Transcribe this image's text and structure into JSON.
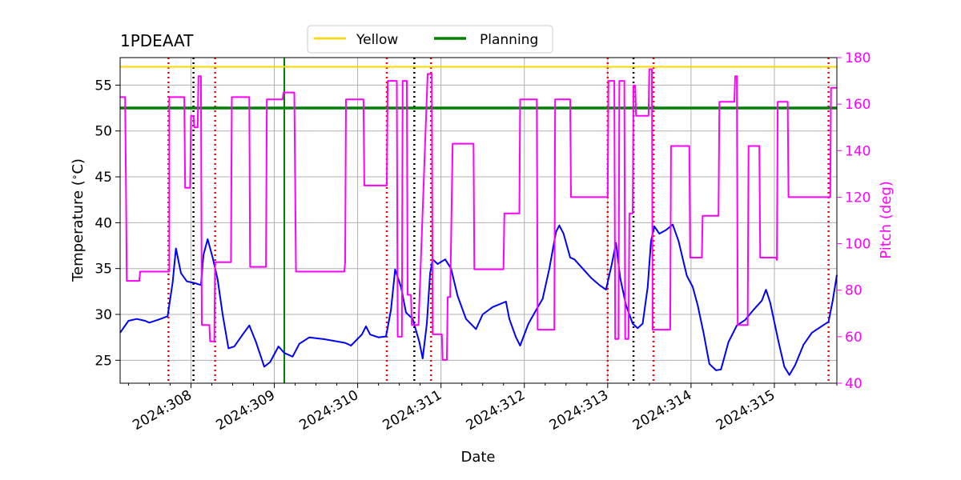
{
  "chart_data": {
    "type": "line",
    "title": "1PDEAAT",
    "xlabel": "Date",
    "ylabel": "Temperature ($^\\circ$C)",
    "y2label": "Pitch (deg)",
    "xlim": [
      307.15,
      315.75
    ],
    "ylim": [
      22.5,
      58.0
    ],
    "y2lim": [
      40,
      180
    ],
    "x_ticks": [
      308,
      309,
      310,
      311,
      312,
      313,
      314,
      315
    ],
    "x_tick_labels": [
      "2024:308",
      "2024:309",
      "2024:310",
      "2024:311",
      "2024:312",
      "2024:313",
      "2024:314",
      "2024:315"
    ],
    "y_ticks": [
      25,
      30,
      35,
      40,
      45,
      50,
      55
    ],
    "y_tick_labels": [
      "25",
      "30",
      "35",
      "40",
      "45",
      "50",
      "55"
    ],
    "y2_ticks": [
      40,
      60,
      80,
      100,
      120,
      140,
      160,
      180
    ],
    "y2_tick_labels": [
      "40",
      "60",
      "80",
      "100",
      "120",
      "140",
      "160",
      "180"
    ],
    "grid": true,
    "legend_position": "top-center",
    "colors": {
      "temperature": "#0000ff",
      "pitch": "#ff00ff",
      "yellow": "#ffd700",
      "planning": "#008000",
      "red_marker": "#ff0000",
      "black_marker": "#000000"
    },
    "legend": [
      {
        "name": "Yellow",
        "color": "#ffd700"
      },
      {
        "name": "Planning",
        "color": "#008000"
      }
    ],
    "hlines": [
      {
        "name": "Yellow",
        "y": 57.0,
        "color": "#ffd700"
      },
      {
        "name": "Planning",
        "y": 52.5,
        "color": "#008000"
      }
    ],
    "planning_vline_x": 309.12,
    "red_vlines": [
      307.73,
      308.29,
      310.35,
      310.88,
      313.0,
      313.55,
      315.65
    ],
    "black_vlines": [
      308.03,
      310.68,
      313.31
    ],
    "series": [
      {
        "name": "Temperature",
        "axis": "left",
        "color": "#0000ff",
        "points": [
          [
            307.15,
            28.0
          ],
          [
            307.25,
            29.3
          ],
          [
            307.35,
            29.5
          ],
          [
            307.45,
            29.3
          ],
          [
            307.5,
            29.1
          ],
          [
            307.6,
            29.4
          ],
          [
            307.72,
            29.8
          ],
          [
            307.78,
            33.5
          ],
          [
            307.82,
            37.2
          ],
          [
            307.88,
            34.5
          ],
          [
            307.95,
            33.6
          ],
          [
            308.05,
            33.4
          ],
          [
            308.12,
            33.2
          ],
          [
            308.15,
            36.5
          ],
          [
            308.2,
            38.2
          ],
          [
            308.26,
            36.2
          ],
          [
            308.32,
            33.8
          ],
          [
            308.38,
            30.0
          ],
          [
            308.45,
            26.3
          ],
          [
            308.52,
            26.5
          ],
          [
            308.62,
            27.8
          ],
          [
            308.7,
            28.8
          ],
          [
            308.78,
            27.0
          ],
          [
            308.88,
            24.3
          ],
          [
            308.95,
            24.8
          ],
          [
            309.05,
            26.5
          ],
          [
            309.12,
            25.8
          ],
          [
            309.22,
            25.4
          ],
          [
            309.3,
            26.8
          ],
          [
            309.42,
            27.5
          ],
          [
            309.6,
            27.3
          ],
          [
            309.85,
            26.9
          ],
          [
            309.92,
            26.6
          ],
          [
            310.05,
            27.8
          ],
          [
            310.1,
            28.7
          ],
          [
            310.15,
            27.8
          ],
          [
            310.25,
            27.5
          ],
          [
            310.34,
            27.6
          ],
          [
            310.4,
            30.5
          ],
          [
            310.45,
            34.9
          ],
          [
            310.52,
            33.0
          ],
          [
            310.58,
            30.2
          ],
          [
            310.66,
            29.5
          ],
          [
            310.74,
            27.0
          ],
          [
            310.78,
            25.2
          ],
          [
            310.83,
            29.0
          ],
          [
            310.87,
            34.5
          ],
          [
            310.9,
            36.0
          ],
          [
            310.96,
            35.5
          ],
          [
            311.05,
            36.0
          ],
          [
            311.12,
            35.0
          ],
          [
            311.2,
            32.0
          ],
          [
            311.3,
            29.5
          ],
          [
            311.42,
            28.4
          ],
          [
            311.5,
            30.0
          ],
          [
            311.62,
            30.8
          ],
          [
            311.78,
            31.4
          ],
          [
            311.82,
            29.5
          ],
          [
            311.9,
            27.5
          ],
          [
            311.95,
            26.6
          ],
          [
            312.05,
            29.0
          ],
          [
            312.15,
            30.6
          ],
          [
            312.22,
            31.7
          ],
          [
            312.3,
            35.0
          ],
          [
            312.38,
            39.0
          ],
          [
            312.42,
            39.7
          ],
          [
            312.47,
            38.8
          ],
          [
            312.55,
            36.2
          ],
          [
            312.6,
            36.0
          ],
          [
            312.7,
            35.0
          ],
          [
            312.8,
            34.0
          ],
          [
            312.9,
            33.2
          ],
          [
            312.98,
            32.7
          ],
          [
            313.05,
            35.5
          ],
          [
            313.1,
            37.8
          ],
          [
            313.15,
            34.0
          ],
          [
            313.22,
            31.0
          ],
          [
            313.3,
            29.0
          ],
          [
            313.36,
            28.5
          ],
          [
            313.42,
            29.0
          ],
          [
            313.48,
            33.0
          ],
          [
            313.52,
            38.0
          ],
          [
            313.56,
            39.6
          ],
          [
            313.62,
            38.8
          ],
          [
            313.7,
            39.2
          ],
          [
            313.78,
            39.8
          ],
          [
            313.85,
            38.0
          ],
          [
            313.95,
            34.2
          ],
          [
            314.02,
            33.0
          ],
          [
            314.08,
            31.0
          ],
          [
            314.15,
            28.0
          ],
          [
            314.22,
            24.6
          ],
          [
            314.3,
            23.9
          ],
          [
            314.36,
            24.0
          ],
          [
            314.45,
            27.0
          ],
          [
            314.55,
            28.8
          ],
          [
            314.65,
            29.4
          ],
          [
            314.75,
            30.5
          ],
          [
            314.85,
            31.5
          ],
          [
            314.9,
            32.7
          ],
          [
            314.95,
            31.3
          ],
          [
            315.05,
            27.0
          ],
          [
            315.12,
            24.3
          ],
          [
            315.18,
            23.4
          ],
          [
            315.25,
            24.5
          ],
          [
            315.35,
            26.7
          ],
          [
            315.45,
            28.0
          ],
          [
            315.6,
            28.9
          ],
          [
            315.65,
            29.2
          ],
          [
            315.7,
            31.5
          ],
          [
            315.75,
            34.3
          ]
        ]
      },
      {
        "name": "Pitch",
        "axis": "right",
        "color": "#ff00ff",
        "points": [
          [
            307.15,
            163
          ],
          [
            307.21,
            163
          ],
          [
            307.22,
            125
          ],
          [
            307.23,
            84
          ],
          [
            307.38,
            84
          ],
          [
            307.39,
            88
          ],
          [
            307.74,
            88
          ],
          [
            307.74,
            163
          ],
          [
            307.92,
            163
          ],
          [
            307.93,
            124
          ],
          [
            307.99,
            124
          ],
          [
            308.0,
            155
          ],
          [
            308.03,
            155
          ],
          [
            308.04,
            150
          ],
          [
            308.08,
            150
          ],
          [
            308.09,
            172
          ],
          [
            308.12,
            172
          ],
          [
            308.13,
            65
          ],
          [
            308.22,
            65
          ],
          [
            308.23,
            58
          ],
          [
            308.28,
            58
          ],
          [
            308.29,
            92
          ],
          [
            308.48,
            92
          ],
          [
            308.49,
            163
          ],
          [
            308.7,
            163
          ],
          [
            308.71,
            90
          ],
          [
            308.9,
            90
          ],
          [
            308.91,
            162
          ],
          [
            309.02,
            162
          ],
          [
            309.1,
            162
          ],
          [
            309.11,
            165
          ],
          [
            309.24,
            165
          ],
          [
            309.26,
            88
          ],
          [
            309.84,
            88
          ],
          [
            309.85,
            92
          ],
          [
            309.86,
            162
          ],
          [
            310.07,
            162
          ],
          [
            310.08,
            125
          ],
          [
            310.35,
            125
          ],
          [
            310.36,
            170
          ],
          [
            310.47,
            170
          ],
          [
            310.48,
            60
          ],
          [
            310.53,
            60
          ],
          [
            310.54,
            170
          ],
          [
            310.59,
            170
          ],
          [
            310.6,
            78
          ],
          [
            310.64,
            78
          ],
          [
            310.65,
            65
          ],
          [
            310.73,
            65
          ],
          [
            310.84,
            173
          ],
          [
            310.89,
            173
          ],
          [
            310.9,
            61
          ],
          [
            311.01,
            61
          ],
          [
            311.02,
            50
          ],
          [
            311.07,
            50
          ],
          [
            311.08,
            77
          ],
          [
            311.11,
            77
          ],
          [
            311.14,
            143
          ],
          [
            311.39,
            143
          ],
          [
            311.4,
            89
          ],
          [
            311.75,
            89
          ],
          [
            311.76,
            113
          ],
          [
            311.94,
            113
          ],
          [
            311.95,
            162
          ],
          [
            312.15,
            162
          ],
          [
            312.16,
            63
          ],
          [
            312.36,
            63
          ],
          [
            312.37,
            162
          ],
          [
            312.55,
            162
          ],
          [
            312.56,
            120
          ],
          [
            313.0,
            120
          ],
          [
            313.01,
            170
          ],
          [
            313.08,
            170
          ],
          [
            313.09,
            59
          ],
          [
            313.13,
            59
          ],
          [
            313.14,
            170
          ],
          [
            313.2,
            170
          ],
          [
            313.21,
            59
          ],
          [
            313.25,
            59
          ],
          [
            313.26,
            113
          ],
          [
            313.3,
            113
          ],
          [
            313.31,
            168
          ],
          [
            313.33,
            168
          ],
          [
            313.34,
            155
          ],
          [
            313.49,
            155
          ],
          [
            313.5,
            175
          ],
          [
            313.53,
            175
          ],
          [
            313.54,
            63
          ],
          [
            313.75,
            63
          ],
          [
            313.76,
            142
          ],
          [
            313.98,
            142
          ],
          [
            313.99,
            94
          ],
          [
            314.13,
            94
          ],
          [
            314.14,
            112
          ],
          [
            314.33,
            112
          ],
          [
            314.34,
            161
          ],
          [
            314.52,
            161
          ],
          [
            314.53,
            172
          ],
          [
            314.55,
            172
          ],
          [
            314.56,
            65
          ],
          [
            314.68,
            65
          ],
          [
            314.69,
            142
          ],
          [
            314.82,
            142
          ],
          [
            314.83,
            94
          ],
          [
            315.02,
            94
          ],
          [
            315.03,
            93
          ],
          [
            315.04,
            161
          ],
          [
            315.16,
            161
          ],
          [
            315.17,
            120
          ],
          [
            315.67,
            120
          ],
          [
            315.68,
            167
          ],
          [
            315.75,
            167
          ]
        ]
      }
    ]
  }
}
